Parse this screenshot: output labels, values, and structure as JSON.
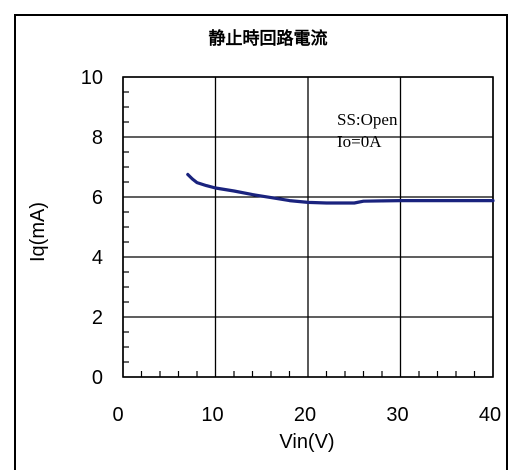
{
  "chart_data": {
    "type": "line",
    "title": "静止時回路電流",
    "xlabel": "Vin(V)",
    "ylabel": "Iq(mA)",
    "xlim": [
      0,
      40
    ],
    "ylim": [
      0,
      10
    ],
    "xticks": [
      0,
      10,
      20,
      30,
      40
    ],
    "yticks": [
      0,
      2,
      4,
      6,
      8,
      10
    ],
    "grid": true,
    "annotations": [
      "SS:Open",
      "Io=0A"
    ],
    "series": [
      {
        "color": "#1a237e",
        "x": [
          7,
          7.5,
          8,
          9,
          10,
          12,
          14,
          16,
          18,
          20,
          22,
          25,
          26,
          28,
          30,
          35,
          40
        ],
        "y": [
          6.75,
          6.6,
          6.48,
          6.38,
          6.3,
          6.2,
          6.08,
          5.98,
          5.88,
          5.82,
          5.8,
          5.8,
          5.86,
          5.87,
          5.88,
          5.88,
          5.88
        ]
      }
    ]
  }
}
